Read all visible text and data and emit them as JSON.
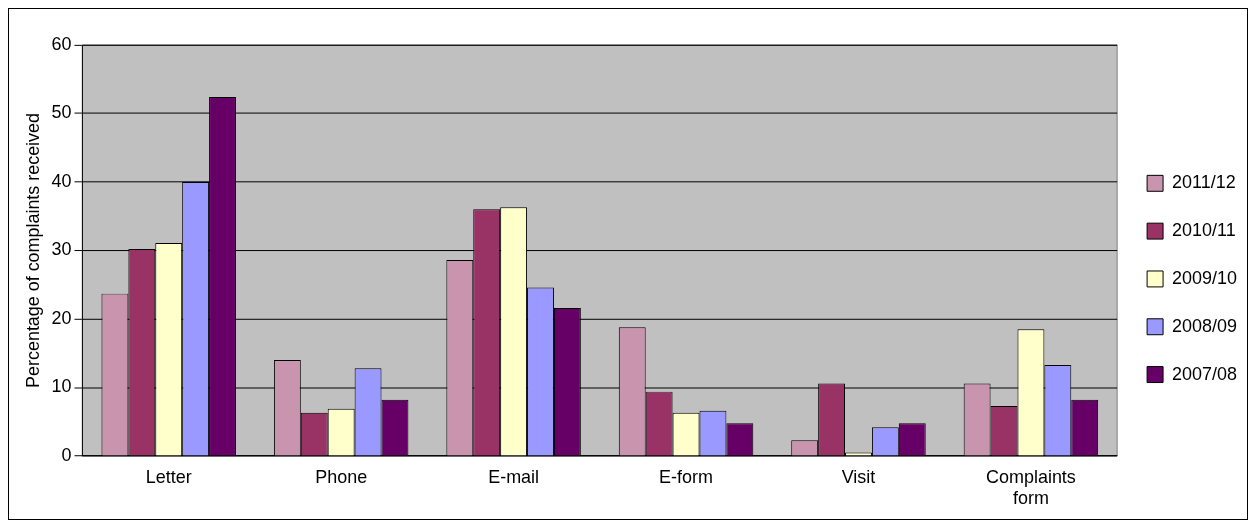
{
  "chart_data": {
    "type": "bar",
    "ylabel": "Percentage of complaints received",
    "categories": [
      "Letter",
      "Phone",
      "E-mail",
      "E-form",
      "Visit",
      "Complaints form"
    ],
    "series": [
      {
        "name": "2011/12",
        "color": "#c994ad",
        "values": [
          23.7,
          14,
          28.6,
          18.8,
          2.3,
          10.6
        ]
      },
      {
        "name": "2010/11",
        "color": "#993366",
        "values": [
          30.2,
          6.3,
          36,
          9.4,
          10.6,
          7.3
        ]
      },
      {
        "name": "2009/10",
        "color": "#ffffcc",
        "values": [
          31.1,
          6.9,
          36.3,
          6.3,
          0.5,
          18.5
        ]
      },
      {
        "name": "2008/09",
        "color": "#9999ff",
        "values": [
          40,
          12.8,
          24.6,
          6.6,
          4.2,
          13.3
        ]
      },
      {
        "name": "2007/08",
        "color": "#660066",
        "values": [
          52.4,
          8.2,
          21.6,
          4.8,
          4.8,
          8.2
        ]
      }
    ],
    "ylim": [
      0,
      60
    ],
    "yticks": [
      0,
      10,
      20,
      30,
      40,
      50,
      60
    ],
    "grid": "y",
    "legend": "right"
  }
}
